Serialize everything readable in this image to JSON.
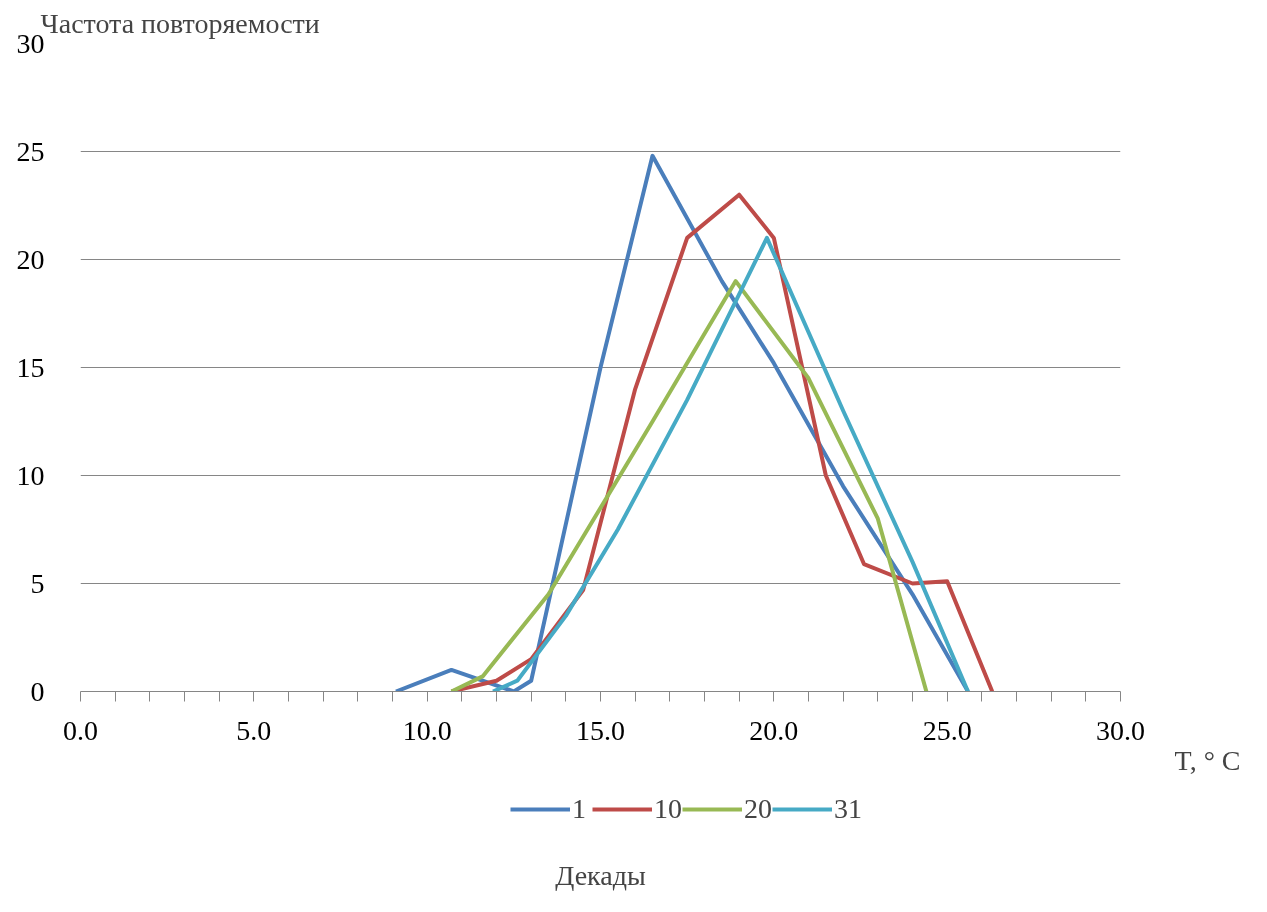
{
  "chart_data": {
    "type": "line",
    "ylabel": "Частота повторяемости",
    "xlabel": "T, ° C",
    "legend_title": "Декады",
    "xlim": [
      0,
      30
    ],
    "ylim": [
      0,
      30
    ],
    "xticks": [
      {
        "value": 0,
        "label": "0.0"
      },
      {
        "value": 1,
        "label": null
      },
      {
        "value": 2,
        "label": null
      },
      {
        "value": 3,
        "label": null
      },
      {
        "value": 4,
        "label": null
      },
      {
        "value": 5,
        "label": "5.0"
      },
      {
        "value": 6,
        "label": null
      },
      {
        "value": 7,
        "label": null
      },
      {
        "value": 8,
        "label": null
      },
      {
        "value": 9,
        "label": null
      },
      {
        "value": 10,
        "label": "10.0"
      },
      {
        "value": 11,
        "label": null
      },
      {
        "value": 12,
        "label": null
      },
      {
        "value": 13,
        "label": null
      },
      {
        "value": 14,
        "label": null
      },
      {
        "value": 15,
        "label": "15.0"
      },
      {
        "value": 16,
        "label": null
      },
      {
        "value": 17,
        "label": null
      },
      {
        "value": 18,
        "label": null
      },
      {
        "value": 19,
        "label": null
      },
      {
        "value": 20,
        "label": "20.0"
      },
      {
        "value": 21,
        "label": null
      },
      {
        "value": 22,
        "label": null
      },
      {
        "value": 23,
        "label": null
      },
      {
        "value": 24,
        "label": null
      },
      {
        "value": 25,
        "label": "25.0"
      },
      {
        "value": 26,
        "label": null
      },
      {
        "value": 27,
        "label": null
      },
      {
        "value": 28,
        "label": null
      },
      {
        "value": 29,
        "label": null
      },
      {
        "value": 30,
        "label": "30.0"
      }
    ],
    "yticks": [
      0,
      5,
      10,
      15,
      20,
      25,
      30
    ],
    "grid": "y",
    "legend": "bottom",
    "marker": "none",
    "line_style": "solid",
    "series": [
      {
        "name": "1",
        "color": "#4a7ebb",
        "x": [
          9.1,
          10.7,
          12.5,
          13.0,
          15.0,
          16.5,
          18.5,
          20.0,
          22.0,
          24.0,
          25.6
        ],
        "values": [
          0,
          1,
          0,
          0.5,
          15,
          24.8,
          19,
          15.2,
          9.5,
          4.5,
          0
        ]
      },
      {
        "name": "10",
        "color": "#be4b48",
        "x": [
          10.7,
          12.0,
          13.0,
          14.5,
          16.0,
          17.5,
          19.0,
          20.0,
          21.5,
          22.6,
          24.0,
          25.0,
          26.3
        ],
        "values": [
          0,
          0.5,
          1.5,
          4.7,
          14,
          21,
          23,
          21,
          10,
          5.9,
          5,
          5.1,
          0
        ]
      },
      {
        "name": "20",
        "color": "#98b954",
        "x": [
          10.7,
          11.6,
          13.5,
          16.5,
          18.9,
          21.0,
          23.0,
          24.4
        ],
        "values": [
          0,
          0.7,
          4.5,
          12.5,
          19,
          14.5,
          8,
          0
        ]
      },
      {
        "name": "31",
        "color": "#46aac5",
        "x": [
          11.9,
          12.6,
          14.0,
          15.5,
          17.5,
          19.8,
          22.0,
          24.0,
          25.6
        ],
        "values": [
          0,
          0.5,
          3.5,
          7.5,
          13.5,
          21,
          13,
          6,
          0
        ]
      }
    ]
  }
}
